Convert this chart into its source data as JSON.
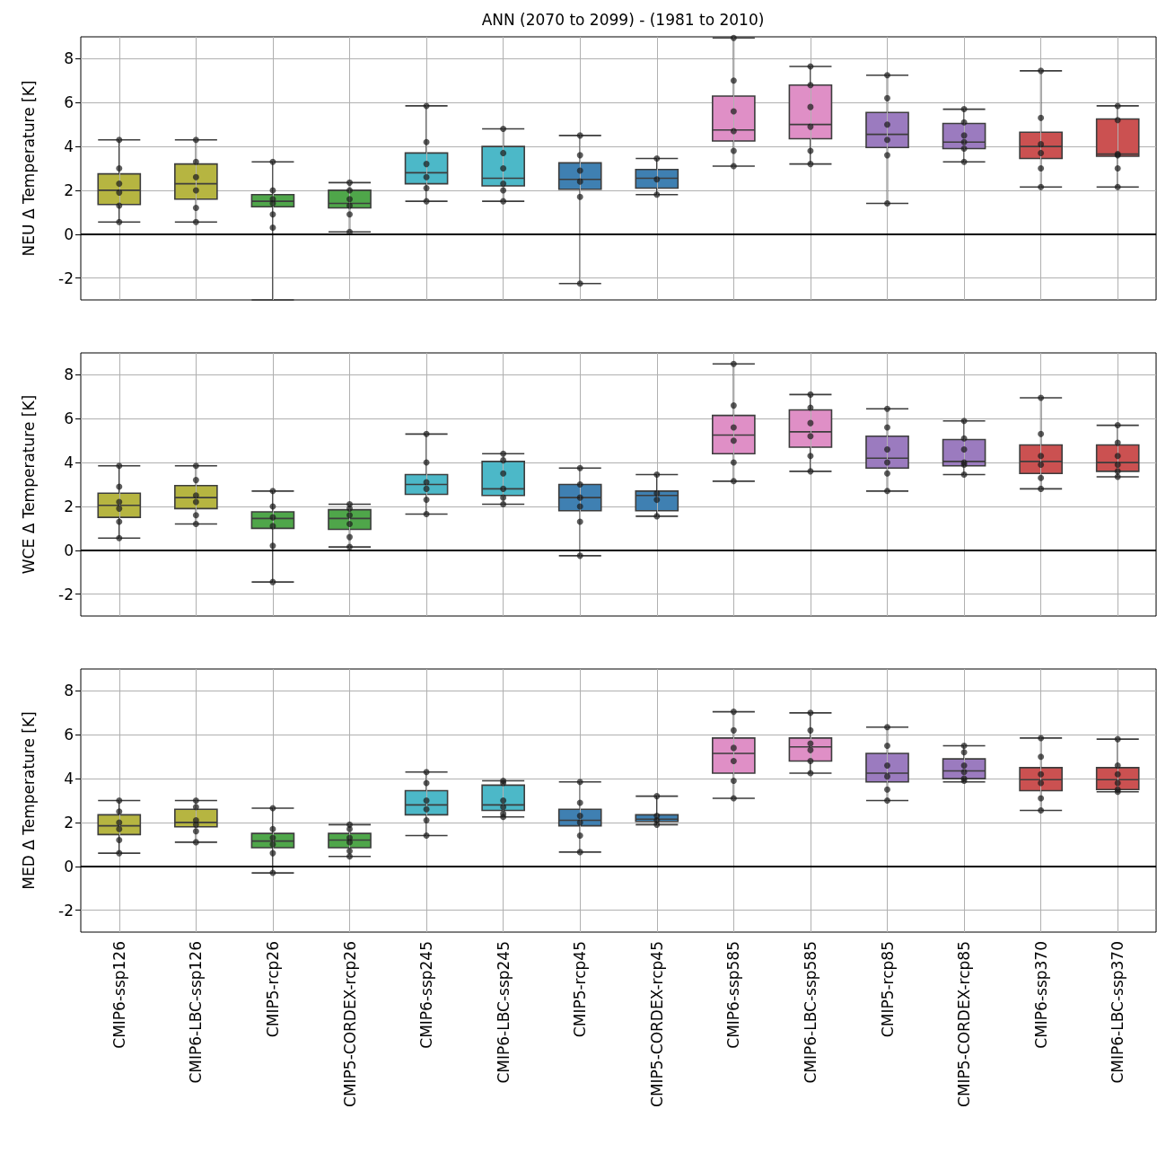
{
  "chart_data": [
    {
      "type": "box",
      "title": "ANN (2070 to 2099) - (1981 to 2010)",
      "ylabel": "NEU Δ Temperature [K]",
      "categories": [
        "CMIP6-ssp126",
        "CMIP6-LBC-ssp126",
        "CMIP5-rcp26",
        "CMIP5-CORDEX-rcp26",
        "CMIP6-ssp245",
        "CMIP6-LBC-ssp245",
        "CMIP5-rcp45",
        "CMIP5-CORDEX-rcp45",
        "CMIP6-ssp585",
        "CMIP6-LBC-ssp585",
        "CMIP5-rcp85",
        "CMIP5-CORDEX-rcp85",
        "CMIP6-ssp370",
        "CMIP6-LBC-ssp370"
      ],
      "colors": [
        "#b6b541",
        "#b6b541",
        "#4fa64a",
        "#4fa64a",
        "#4cb8c8",
        "#4cb8c8",
        "#3f80b2",
        "#3f80b2",
        "#df8fc6",
        "#df8fc6",
        "#9b7bbf",
        "#9b7bbf",
        "#cb5151",
        "#cb5151"
      ],
      "boxes": [
        {
          "low": 0.55,
          "q1": 1.35,
          "median": 2.0,
          "q3": 2.75,
          "high": 4.3
        },
        {
          "low": 0.55,
          "q1": 1.6,
          "median": 2.3,
          "q3": 3.2,
          "high": 4.3
        },
        {
          "low": -3,
          "q1": 1.25,
          "median": 1.5,
          "q3": 1.8,
          "high": 3.3
        },
        {
          "low": 0.1,
          "q1": 1.2,
          "median": 1.4,
          "q3": 2.0,
          "high": 2.35
        },
        {
          "low": 1.5,
          "q1": 2.3,
          "median": 2.8,
          "q3": 3.7,
          "high": 5.85
        },
        {
          "low": 1.5,
          "q1": 2.2,
          "median": 2.55,
          "q3": 4.0,
          "high": 4.8
        },
        {
          "low": -2.25,
          "q1": 2.05,
          "median": 2.5,
          "q3": 3.25,
          "high": 4.5
        },
        {
          "low": 1.8,
          "q1": 2.1,
          "median": 2.55,
          "q3": 2.95,
          "high": 3.45
        },
        {
          "low": 3.1,
          "q1": 4.25,
          "median": 4.75,
          "q3": 6.3,
          "high": 8.95
        },
        {
          "low": 3.2,
          "q1": 4.35,
          "median": 5.0,
          "q3": 6.8,
          "high": 7.65
        },
        {
          "low": 1.4,
          "q1": 3.95,
          "median": 4.55,
          "q3": 5.55,
          "high": 7.25
        },
        {
          "low": 3.3,
          "q1": 3.9,
          "median": 4.2,
          "q3": 5.05,
          "high": 5.7
        },
        {
          "low": 2.15,
          "q1": 3.45,
          "median": 4.0,
          "q3": 4.65,
          "high": 7.45
        },
        {
          "low": 2.15,
          "q1": 3.55,
          "median": 3.65,
          "q3": 5.25,
          "high": 5.85
        }
      ],
      "series": [
        {
          "type": "scatter",
          "color": "#1a1a1a",
          "marker": "circle",
          "x": [
            "CMIP6-ssp126",
            "CMIP6-ssp126",
            "CMIP6-ssp126",
            "CMIP6-ssp126",
            "CMIP6-ssp126",
            "CMIP6-ssp126",
            "CMIP6-LBC-ssp126",
            "CMIP6-LBC-ssp126",
            "CMIP6-LBC-ssp126",
            "CMIP6-LBC-ssp126",
            "CMIP6-LBC-ssp126",
            "CMIP6-LBC-ssp126",
            "CMIP5-rcp26",
            "CMIP5-rcp26",
            "CMIP5-rcp26",
            "CMIP5-rcp26",
            "CMIP5-rcp26",
            "CMIP5-rcp26",
            "CMIP5-CORDEX-rcp26",
            "CMIP5-CORDEX-rcp26",
            "CMIP5-CORDEX-rcp26",
            "CMIP5-CORDEX-rcp26",
            "CMIP5-CORDEX-rcp26",
            "CMIP5-CORDEX-rcp26",
            "CMIP6-ssp245",
            "CMIP6-ssp245",
            "CMIP6-ssp245",
            "CMIP6-ssp245",
            "CMIP6-ssp245",
            "CMIP6-ssp245",
            "CMIP6-LBC-ssp245",
            "CMIP6-LBC-ssp245",
            "CMIP6-LBC-ssp245",
            "CMIP6-LBC-ssp245",
            "CMIP6-LBC-ssp245",
            "CMIP6-LBC-ssp245",
            "CMIP5-rcp45",
            "CMIP5-rcp45",
            "CMIP5-rcp45",
            "CMIP5-rcp45",
            "CMIP5-rcp45",
            "CMIP5-rcp45",
            "CMIP5-CORDEX-rcp45",
            "CMIP5-CORDEX-rcp45",
            "CMIP5-CORDEX-rcp45",
            "CMIP6-ssp585",
            "CMIP6-ssp585",
            "CMIP6-ssp585",
            "CMIP6-ssp585",
            "CMIP6-ssp585",
            "CMIP6-ssp585",
            "CMIP6-LBC-ssp585",
            "CMIP6-LBC-ssp585",
            "CMIP6-LBC-ssp585",
            "CMIP6-LBC-ssp585",
            "CMIP6-LBC-ssp585",
            "CMIP6-LBC-ssp585",
            "CMIP5-rcp85",
            "CMIP5-rcp85",
            "CMIP5-rcp85",
            "CMIP5-rcp85",
            "CMIP5-rcp85",
            "CMIP5-rcp85",
            "CMIP5-CORDEX-rcp85",
            "CMIP5-CORDEX-rcp85",
            "CMIP5-CORDEX-rcp85",
            "CMIP5-CORDEX-rcp85",
            "CMIP5-CORDEX-rcp85",
            "CMIP5-CORDEX-rcp85",
            "CMIP6-ssp370",
            "CMIP6-ssp370",
            "CMIP6-ssp370",
            "CMIP6-ssp370",
            "CMIP6-ssp370",
            "CMIP6-ssp370",
            "CMIP6-LBC-ssp370",
            "CMIP6-LBC-ssp370",
            "CMIP6-LBC-ssp370",
            "CMIP6-LBC-ssp370",
            "CMIP6-LBC-ssp370",
            "CMIP6-LBC-ssp370"
          ],
          "values": [
            0.55,
            1.3,
            1.9,
            2.3,
            3.0,
            4.3,
            0.55,
            1.2,
            2.0,
            2.6,
            3.3,
            4.3,
            0.3,
            0.9,
            1.4,
            1.6,
            2.0,
            3.3,
            0.1,
            0.9,
            1.3,
            1.6,
            2.0,
            2.35,
            1.5,
            2.1,
            2.6,
            3.2,
            4.2,
            5.85,
            1.5,
            2.0,
            2.3,
            3.0,
            3.7,
            4.8,
            -2.25,
            1.7,
            2.4,
            2.9,
            3.6,
            4.5,
            1.8,
            2.5,
            3.45,
            3.1,
            3.8,
            4.7,
            5.6,
            7.0,
            8.95,
            3.2,
            3.8,
            4.9,
            5.8,
            6.8,
            7.65,
            1.4,
            3.6,
            4.3,
            5.0,
            6.2,
            7.25,
            3.3,
            3.9,
            4.2,
            4.5,
            5.1,
            5.7,
            2.15,
            3.0,
            3.7,
            4.1,
            5.3,
            7.45,
            2.15,
            3.0,
            3.6,
            3.65,
            5.2,
            5.85
          ]
        }
      ],
      "ylim": [
        -3,
        9
      ],
      "yticks": [
        -2,
        0,
        2,
        4,
        6,
        8
      ],
      "grid": true,
      "tick_labels": "y",
      "ref_lines": [
        {
          "axis": "y",
          "value": 0,
          "color": "#000000"
        }
      ]
    },
    {
      "type": "box",
      "ylabel": "WCE Δ Temperature [K]",
      "categories": [
        "CMIP6-ssp126",
        "CMIP6-LBC-ssp126",
        "CMIP5-rcp26",
        "CMIP5-CORDEX-rcp26",
        "CMIP6-ssp245",
        "CMIP6-LBC-ssp245",
        "CMIP5-rcp45",
        "CMIP5-CORDEX-rcp45",
        "CMIP6-ssp585",
        "CMIP6-LBC-ssp585",
        "CMIP5-rcp85",
        "CMIP5-CORDEX-rcp85",
        "CMIP6-ssp370",
        "CMIP6-LBC-ssp370"
      ],
      "colors": [
        "#b6b541",
        "#b6b541",
        "#4fa64a",
        "#4fa64a",
        "#4cb8c8",
        "#4cb8c8",
        "#3f80b2",
        "#3f80b2",
        "#df8fc6",
        "#df8fc6",
        "#9b7bbf",
        "#9b7bbf",
        "#cb5151",
        "#cb5151"
      ],
      "boxes": [
        {
          "low": 0.55,
          "q1": 1.5,
          "median": 2.05,
          "q3": 2.6,
          "high": 3.85
        },
        {
          "low": 1.2,
          "q1": 1.9,
          "median": 2.4,
          "q3": 2.95,
          "high": 3.85
        },
        {
          "low": -1.45,
          "q1": 1.0,
          "median": 1.45,
          "q3": 1.75,
          "high": 2.7
        },
        {
          "low": 0.15,
          "q1": 0.95,
          "median": 1.45,
          "q3": 1.85,
          "high": 2.1
        },
        {
          "low": 1.65,
          "q1": 2.55,
          "median": 3.0,
          "q3": 3.45,
          "high": 5.3
        },
        {
          "low": 2.1,
          "q1": 2.5,
          "median": 2.8,
          "q3": 4.05,
          "high": 4.4
        },
        {
          "low": -0.25,
          "q1": 1.8,
          "median": 2.4,
          "q3": 3.0,
          "high": 3.75
        },
        {
          "low": 1.55,
          "q1": 1.8,
          "median": 2.5,
          "q3": 2.7,
          "high": 3.45
        },
        {
          "low": 3.15,
          "q1": 4.4,
          "median": 5.25,
          "q3": 6.15,
          "high": 8.5
        },
        {
          "low": 3.6,
          "q1": 4.7,
          "median": 5.4,
          "q3": 6.4,
          "high": 7.1
        },
        {
          "low": 2.7,
          "q1": 3.75,
          "median": 4.2,
          "q3": 5.2,
          "high": 6.45
        },
        {
          "low": 3.45,
          "q1": 3.85,
          "median": 4.05,
          "q3": 5.05,
          "high": 5.9
        },
        {
          "low": 2.8,
          "q1": 3.5,
          "median": 4.05,
          "q3": 4.8,
          "high": 6.95
        },
        {
          "low": 3.35,
          "q1": 3.6,
          "median": 4.0,
          "q3": 4.8,
          "high": 5.7
        }
      ],
      "series": [
        {
          "type": "scatter",
          "color": "#1a1a1a",
          "marker": "circle",
          "x": [
            "CMIP6-ssp126",
            "CMIP6-ssp126",
            "CMIP6-ssp126",
            "CMIP6-ssp126",
            "CMIP6-ssp126",
            "CMIP6-ssp126",
            "CMIP6-LBC-ssp126",
            "CMIP6-LBC-ssp126",
            "CMIP6-LBC-ssp126",
            "CMIP6-LBC-ssp126",
            "CMIP6-LBC-ssp126",
            "CMIP6-LBC-ssp126",
            "CMIP5-rcp26",
            "CMIP5-rcp26",
            "CMIP5-rcp26",
            "CMIP5-rcp26",
            "CMIP5-rcp26",
            "CMIP5-rcp26",
            "CMIP5-CORDEX-rcp26",
            "CMIP5-CORDEX-rcp26",
            "CMIP5-CORDEX-rcp26",
            "CMIP5-CORDEX-rcp26",
            "CMIP5-CORDEX-rcp26",
            "CMIP5-CORDEX-rcp26",
            "CMIP6-ssp245",
            "CMIP6-ssp245",
            "CMIP6-ssp245",
            "CMIP6-ssp245",
            "CMIP6-ssp245",
            "CMIP6-ssp245",
            "CMIP6-LBC-ssp245",
            "CMIP6-LBC-ssp245",
            "CMIP6-LBC-ssp245",
            "CMIP6-LBC-ssp245",
            "CMIP6-LBC-ssp245",
            "CMIP6-LBC-ssp245",
            "CMIP5-rcp45",
            "CMIP5-rcp45",
            "CMIP5-rcp45",
            "CMIP5-rcp45",
            "CMIP5-rcp45",
            "CMIP5-rcp45",
            "CMIP5-CORDEX-rcp45",
            "CMIP5-CORDEX-rcp45",
            "CMIP5-CORDEX-rcp45",
            "CMIP5-CORDEX-rcp45",
            "CMIP6-ssp585",
            "CMIP6-ssp585",
            "CMIP6-ssp585",
            "CMIP6-ssp585",
            "CMIP6-ssp585",
            "CMIP6-ssp585",
            "CMIP6-LBC-ssp585",
            "CMIP6-LBC-ssp585",
            "CMIP6-LBC-ssp585",
            "CMIP6-LBC-ssp585",
            "CMIP6-LBC-ssp585",
            "CMIP6-LBC-ssp585",
            "CMIP5-rcp85",
            "CMIP5-rcp85",
            "CMIP5-rcp85",
            "CMIP5-rcp85",
            "CMIP5-rcp85",
            "CMIP5-rcp85",
            "CMIP5-CORDEX-rcp85",
            "CMIP5-CORDEX-rcp85",
            "CMIP5-CORDEX-rcp85",
            "CMIP5-CORDEX-rcp85",
            "CMIP5-CORDEX-rcp85",
            "CMIP5-CORDEX-rcp85",
            "CMIP6-ssp370",
            "CMIP6-ssp370",
            "CMIP6-ssp370",
            "CMIP6-ssp370",
            "CMIP6-ssp370",
            "CMIP6-ssp370",
            "CMIP6-LBC-ssp370",
            "CMIP6-LBC-ssp370",
            "CMIP6-LBC-ssp370",
            "CMIP6-LBC-ssp370",
            "CMIP6-LBC-ssp370",
            "CMIP6-LBC-ssp370"
          ],
          "values": [
            0.55,
            1.3,
            1.9,
            2.2,
            2.9,
            3.85,
            1.2,
            1.6,
            2.2,
            2.5,
            3.2,
            3.85,
            -1.45,
            0.2,
            1.1,
            1.5,
            2.0,
            2.7,
            0.15,
            0.6,
            1.2,
            1.6,
            1.9,
            2.1,
            1.65,
            2.3,
            2.8,
            3.1,
            4.0,
            5.3,
            2.1,
            2.4,
            2.8,
            3.5,
            4.1,
            4.4,
            -0.25,
            1.3,
            2.0,
            2.4,
            3.0,
            3.75,
            1.55,
            2.3,
            2.6,
            3.45,
            3.15,
            4.0,
            5.0,
            5.6,
            6.6,
            8.5,
            3.6,
            4.3,
            5.2,
            5.8,
            6.5,
            7.1,
            2.7,
            3.5,
            4.0,
            4.6,
            5.6,
            6.45,
            3.45,
            3.9,
            4.0,
            4.6,
            5.1,
            5.9,
            2.8,
            3.3,
            3.9,
            4.3,
            5.3,
            6.95,
            3.35,
            3.6,
            3.9,
            4.3,
            4.9,
            5.7
          ]
        }
      ],
      "ylim": [
        -3,
        9
      ],
      "yticks": [
        -2,
        0,
        2,
        4,
        6,
        8
      ],
      "grid": true,
      "tick_labels": "y",
      "ref_lines": [
        {
          "axis": "y",
          "value": 0,
          "color": "#000000"
        }
      ]
    },
    {
      "type": "box",
      "ylabel": "MED Δ Temperature [K]",
      "categories": [
        "CMIP6-ssp126",
        "CMIP6-LBC-ssp126",
        "CMIP5-rcp26",
        "CMIP5-CORDEX-rcp26",
        "CMIP6-ssp245",
        "CMIP6-LBC-ssp245",
        "CMIP5-rcp45",
        "CMIP5-CORDEX-rcp45",
        "CMIP6-ssp585",
        "CMIP6-LBC-ssp585",
        "CMIP5-rcp85",
        "CMIP5-CORDEX-rcp85",
        "CMIP6-ssp370",
        "CMIP6-LBC-ssp370"
      ],
      "colors": [
        "#b6b541",
        "#b6b541",
        "#4fa64a",
        "#4fa64a",
        "#4cb8c8",
        "#4cb8c8",
        "#3f80b2",
        "#3f80b2",
        "#df8fc6",
        "#df8fc6",
        "#9b7bbf",
        "#9b7bbf",
        "#cb5151",
        "#cb5151"
      ],
      "boxes": [
        {
          "low": 0.6,
          "q1": 1.45,
          "median": 1.85,
          "q3": 2.35,
          "high": 3.0
        },
        {
          "low": 1.1,
          "q1": 1.8,
          "median": 2.0,
          "q3": 2.6,
          "high": 3.0
        },
        {
          "low": -0.3,
          "q1": 0.85,
          "median": 1.15,
          "q3": 1.5,
          "high": 2.65
        },
        {
          "low": 0.45,
          "q1": 0.85,
          "median": 1.2,
          "q3": 1.5,
          "high": 1.9
        },
        {
          "low": 1.4,
          "q1": 2.35,
          "median": 2.8,
          "q3": 3.45,
          "high": 4.3
        },
        {
          "low": 2.25,
          "q1": 2.55,
          "median": 2.8,
          "q3": 3.7,
          "high": 3.9
        },
        {
          "low": 0.65,
          "q1": 1.85,
          "median": 2.1,
          "q3": 2.6,
          "high": 3.85
        },
        {
          "low": 1.9,
          "q1": 2.05,
          "median": 2.15,
          "q3": 2.35,
          "high": 3.2
        },
        {
          "low": 3.1,
          "q1": 4.25,
          "median": 5.15,
          "q3": 5.85,
          "high": 7.05
        },
        {
          "low": 4.25,
          "q1": 4.8,
          "median": 5.45,
          "q3": 5.85,
          "high": 7.0
        },
        {
          "low": 3.0,
          "q1": 3.85,
          "median": 4.25,
          "q3": 5.15,
          "high": 6.35
        },
        {
          "low": 3.85,
          "q1": 4.0,
          "median": 4.35,
          "q3": 4.9,
          "high": 5.5
        },
        {
          "low": 2.55,
          "q1": 3.45,
          "median": 3.95,
          "q3": 4.5,
          "high": 5.85
        },
        {
          "low": 3.4,
          "q1": 3.5,
          "median": 3.95,
          "q3": 4.5,
          "high": 5.8
        }
      ],
      "series": [
        {
          "type": "scatter",
          "color": "#1a1a1a",
          "marker": "circle",
          "x": [
            "CMIP6-ssp126",
            "CMIP6-ssp126",
            "CMIP6-ssp126",
            "CMIP6-ssp126",
            "CMIP6-ssp126",
            "CMIP6-ssp126",
            "CMIP6-LBC-ssp126",
            "CMIP6-LBC-ssp126",
            "CMIP6-LBC-ssp126",
            "CMIP6-LBC-ssp126",
            "CMIP6-LBC-ssp126",
            "CMIP6-LBC-ssp126",
            "CMIP5-rcp26",
            "CMIP5-rcp26",
            "CMIP5-rcp26",
            "CMIP5-rcp26",
            "CMIP5-rcp26",
            "CMIP5-rcp26",
            "CMIP5-CORDEX-rcp26",
            "CMIP5-CORDEX-rcp26",
            "CMIP5-CORDEX-rcp26",
            "CMIP5-CORDEX-rcp26",
            "CMIP5-CORDEX-rcp26",
            "CMIP5-CORDEX-rcp26",
            "CMIP6-ssp245",
            "CMIP6-ssp245",
            "CMIP6-ssp245",
            "CMIP6-ssp245",
            "CMIP6-ssp245",
            "CMIP6-ssp245",
            "CMIP6-LBC-ssp245",
            "CMIP6-LBC-ssp245",
            "CMIP6-LBC-ssp245",
            "CMIP6-LBC-ssp245",
            "CMIP6-LBC-ssp245",
            "CMIP6-LBC-ssp245",
            "CMIP5-rcp45",
            "CMIP5-rcp45",
            "CMIP5-rcp45",
            "CMIP5-rcp45",
            "CMIP5-rcp45",
            "CMIP5-rcp45",
            "CMIP5-CORDEX-rcp45",
            "CMIP5-CORDEX-rcp45",
            "CMIP5-CORDEX-rcp45",
            "CMIP5-CORDEX-rcp45",
            "CMIP6-ssp585",
            "CMIP6-ssp585",
            "CMIP6-ssp585",
            "CMIP6-ssp585",
            "CMIP6-ssp585",
            "CMIP6-ssp585",
            "CMIP6-LBC-ssp585",
            "CMIP6-LBC-ssp585",
            "CMIP6-LBC-ssp585",
            "CMIP6-LBC-ssp585",
            "CMIP6-LBC-ssp585",
            "CMIP6-LBC-ssp585",
            "CMIP5-rcp85",
            "CMIP5-rcp85",
            "CMIP5-rcp85",
            "CMIP5-rcp85",
            "CMIP5-rcp85",
            "CMIP5-rcp85",
            "CMIP5-CORDEX-rcp85",
            "CMIP5-CORDEX-rcp85",
            "CMIP5-CORDEX-rcp85",
            "CMIP5-CORDEX-rcp85",
            "CMIP5-CORDEX-rcp85",
            "CMIP5-CORDEX-rcp85",
            "CMIP6-ssp370",
            "CMIP6-ssp370",
            "CMIP6-ssp370",
            "CMIP6-ssp370",
            "CMIP6-ssp370",
            "CMIP6-ssp370",
            "CMIP6-LBC-ssp370",
            "CMIP6-LBC-ssp370",
            "CMIP6-LBC-ssp370",
            "CMIP6-LBC-ssp370",
            "CMIP6-LBC-ssp370",
            "CMIP6-LBC-ssp370"
          ],
          "values": [
            0.6,
            1.2,
            1.7,
            2.0,
            2.5,
            3.0,
            1.1,
            1.6,
            1.9,
            2.1,
            2.7,
            3.0,
            -0.3,
            0.6,
            1.0,
            1.3,
            1.7,
            2.65,
            0.45,
            0.7,
            1.1,
            1.3,
            1.7,
            1.9,
            1.4,
            2.1,
            2.6,
            3.0,
            3.8,
            4.3,
            2.25,
            2.4,
            2.7,
            3.0,
            3.8,
            3.9,
            0.65,
            1.4,
            2.0,
            2.3,
            2.9,
            3.85,
            1.9,
            2.1,
            2.3,
            3.2,
            3.1,
            3.9,
            4.8,
            5.4,
            6.2,
            7.05,
            4.25,
            4.8,
            5.3,
            5.6,
            6.2,
            7.0,
            3.0,
            3.5,
            4.1,
            4.6,
            5.5,
            6.35,
            3.9,
            4.0,
            4.3,
            4.6,
            5.2,
            5.5,
            2.55,
            3.1,
            3.8,
            4.2,
            5.0,
            5.85,
            3.4,
            3.5,
            3.8,
            4.2,
            4.6,
            5.8
          ]
        }
      ],
      "ylim": [
        -3,
        9
      ],
      "yticks": [
        -2,
        0,
        2,
        4,
        6,
        8
      ],
      "grid": true,
      "ref_lines": [
        {
          "axis": "y",
          "value": 0,
          "color": "#000000"
        }
      ]
    }
  ]
}
